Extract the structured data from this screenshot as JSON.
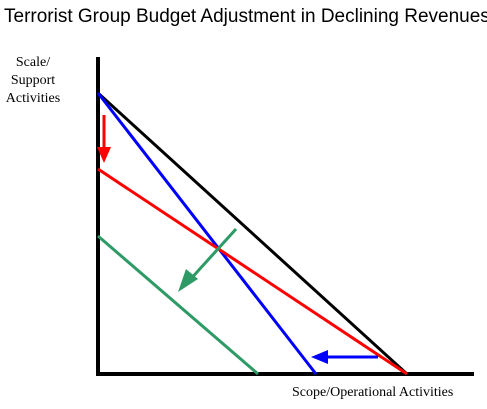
{
  "diagram": {
    "title": "Terrorist Group Budget Adjustment in Declining Revenues",
    "y_axis_label_lines": [
      "Scale/",
      "Support",
      "Activities"
    ],
    "x_axis_label": "Scope/Operational Activities",
    "colors": {
      "axes": "#000000",
      "original_budget_line": "#000000",
      "scope_cut_line": "#0000ff",
      "scale_cut_line": "#ff0000",
      "proportional_cut_line": "#2e9a66",
      "scope_cut_arrow": "#0000ff",
      "scale_cut_arrow": "#ff0000",
      "proportional_cut_arrow": "#2e9a66"
    },
    "icons": [
      "arrow-left-icon",
      "arrow-down-icon",
      "arrow-down-left-icon"
    ]
  }
}
